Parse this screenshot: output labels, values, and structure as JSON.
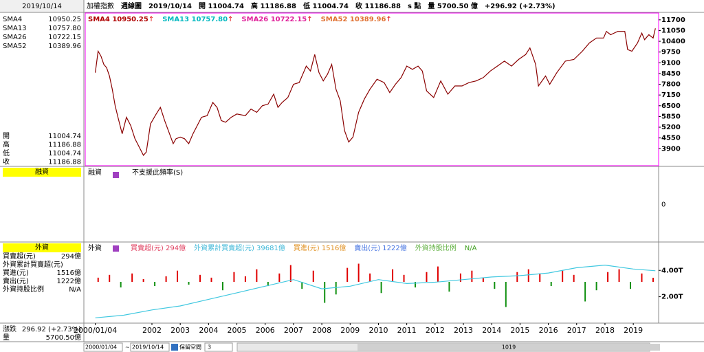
{
  "header": {
    "date": "2019/10/14",
    "items": [
      "加權指數",
      "週線圖",
      "2019/10/14",
      "開 11004.74",
      "高 11186.88",
      "低 11004.74",
      "收 11186.88",
      "s 點",
      "量 5700.50 億",
      "+296.92 (+2.73%)"
    ]
  },
  "left": {
    "sma": [
      {
        "name": "SMA4",
        "value": "10950.25",
        "color": "#b00000"
      },
      {
        "name": "SMA13",
        "value": "10757.80",
        "color": "#00b8c0"
      },
      {
        "name": "SMA26",
        "value": "10722.15",
        "color": "#e0209a"
      },
      {
        "name": "SMA52",
        "value": "10389.96",
        "color": "#e07030"
      }
    ],
    "ohlc": [
      {
        "label": "開",
        "value": "11004.74"
      },
      {
        "label": "高",
        "value": "11186.88"
      },
      {
        "label": "低",
        "value": "11004.74"
      },
      {
        "label": "收",
        "value": "11186.88"
      }
    ],
    "margin_title": "融資",
    "foreign_title": "外資",
    "foreign_items": [
      {
        "label": "買賣超(元)",
        "value": "294億",
        "color": "#e00000"
      },
      {
        "label": "外資累計買賣超(元)",
        "color": "#2060e0"
      },
      {
        "label": "買進(元)",
        "value": "1516億",
        "color": "#e08000"
      },
      {
        "label": "賣出(元)",
        "value": "1222億",
        "color": "#2060e0"
      },
      {
        "label": "外資持股比例",
        "value": "N/A",
        "color": "#20a020"
      }
    ],
    "change_label": "漲跌",
    "change": "296.92 (+2.73%)",
    "volume_label": "量",
    "volume": "5700.50億"
  },
  "margin_panel": {
    "title": "融資",
    "note": "不支援此頻率(S)",
    "ylim": [
      -1,
      1
    ],
    "yticks": [
      0
    ]
  },
  "chart_data": [
    {
      "type": "line",
      "legend": [
        {
          "text": "SMA4 10950.25",
          "arrow": "↑",
          "color": "#b00000"
        },
        {
          "text": "SMA13 10757.80",
          "arrow": "↑",
          "color": "#00b8c0"
        },
        {
          "text": "SMA26 10722.15",
          "arrow": "↑",
          "color": "#e0209a"
        },
        {
          "text": "SMA52 10389.96",
          "arrow": "↑",
          "color": "#e07030"
        }
      ],
      "xlim": [
        1999.645,
        2019.895
      ],
      "ylim": [
        2870,
        12110
      ],
      "yticks": [
        11700,
        11050,
        10400,
        9750,
        9100,
        8450,
        7800,
        7150,
        6500,
        5850,
        5200,
        4550,
        3900
      ],
      "series": [
        {
          "color": "#8a0000",
          "x": [
            2000.0,
            2000.1,
            2000.2,
            2000.3,
            2000.4,
            2000.5,
            2000.6,
            2000.7,
            2000.8,
            2000.95,
            2001.1,
            2001.25,
            2001.4,
            2001.55,
            2001.7,
            2001.8,
            2001.95,
            2002.15,
            2002.3,
            2002.45,
            2002.6,
            2002.75,
            2002.85,
            2003.0,
            2003.15,
            2003.3,
            2003.45,
            2003.6,
            2003.75,
            2003.95,
            2004.15,
            2004.3,
            2004.45,
            2004.6,
            2004.8,
            2005.0,
            2005.3,
            2005.5,
            2005.7,
            2005.9,
            2006.1,
            2006.3,
            2006.45,
            2006.6,
            2006.8,
            2007.0,
            2007.2,
            2007.45,
            2007.6,
            2007.75,
            2007.9,
            2008.05,
            2008.2,
            2008.35,
            2008.5,
            2008.65,
            2008.8,
            2008.95,
            2009.1,
            2009.3,
            2009.5,
            2009.7,
            2009.95,
            2010.2,
            2010.4,
            2010.6,
            2010.8,
            2011.0,
            2011.2,
            2011.4,
            2011.55,
            2011.7,
            2011.95,
            2012.2,
            2012.45,
            2012.7,
            2012.95,
            2013.2,
            2013.45,
            2013.7,
            2013.95,
            2014.2,
            2014.45,
            2014.7,
            2014.95,
            2015.2,
            2015.35,
            2015.55,
            2015.65,
            2015.9,
            2016.05,
            2016.3,
            2016.6,
            2016.9,
            2017.2,
            2017.45,
            2017.7,
            2017.95,
            2018.05,
            2018.2,
            2018.45,
            2018.7,
            2018.8,
            2018.95,
            2019.15,
            2019.3,
            2019.4,
            2019.55,
            2019.7,
            2019.78
          ],
          "values": [
            8500,
            9800,
            9500,
            9000,
            8800,
            8300,
            7500,
            6500,
            5800,
            4800,
            5800,
            5300,
            4500,
            4000,
            3500,
            3700,
            5400,
            6000,
            6400,
            5600,
            4900,
            4200,
            4500,
            4600,
            4500,
            4200,
            4800,
            5300,
            5800,
            5900,
            6700,
            6400,
            5600,
            5500,
            5800,
            6000,
            5900,
            6300,
            6100,
            6500,
            6600,
            7200,
            6400,
            6700,
            7000,
            7800,
            7900,
            8900,
            8600,
            9600,
            8500,
            8000,
            8400,
            9000,
            7500,
            6800,
            5000,
            4300,
            4600,
            6100,
            6900,
            7500,
            8100,
            7900,
            7300,
            7800,
            8200,
            8900,
            8700,
            8900,
            8600,
            7400,
            7000,
            8000,
            7200,
            7700,
            7700,
            7900,
            8000,
            8200,
            8600,
            8900,
            9200,
            8900,
            9300,
            9600,
            10000,
            9000,
            7700,
            8300,
            7800,
            8500,
            9200,
            9300,
            9800,
            10300,
            10600,
            10600,
            11000,
            10800,
            11000,
            11000,
            9900,
            9800,
            10300,
            10900,
            10500,
            10800,
            10600,
            11186.88
          ]
        }
      ]
    },
    {
      "type": "combo",
      "title": "外資",
      "legend": [
        {
          "text": "買賣超(元) 294億",
          "color": "#e04060"
        },
        {
          "text": "外資累計買賣超(元) 39681億",
          "color": "#40b8d8"
        },
        {
          "text": "買進(元) 1516億",
          "color": "#e09020"
        },
        {
          "text": "賣出(元) 1222億",
          "color": "#4070e0"
        },
        {
          "text": "外資持股比例",
          "color": "#60b040"
        },
        {
          "text": "N/A",
          "color": "#40a020"
        }
      ],
      "xlim": [
        1999.645,
        2019.895
      ],
      "xticks": [
        {
          "value": 2000.0,
          "label": "2000/01/04"
        },
        2002,
        2003,
        2004,
        2005,
        2006,
        2007,
        2008,
        2009,
        2010,
        2011,
        2012,
        2013,
        2014,
        2015,
        2016,
        2017,
        2018,
        2019
      ],
      "ylim": [
        0.05,
        6.1
      ],
      "yticks": [
        {
          "value": 4,
          "label": "4.00T"
        },
        {
          "value": 2,
          "label": "2.00T"
        }
      ],
      "y2lim": [
        -2900,
        2800
      ],
      "series": [
        {
          "type": "bar",
          "axis": "y2",
          "x": [
            2000.1,
            2000.5,
            2000.9,
            2001.3,
            2001.7,
            2002.1,
            2002.5,
            2002.9,
            2003.3,
            2003.7,
            2004.1,
            2004.5,
            2004.9,
            2005.3,
            2005.7,
            2006.1,
            2006.5,
            2006.9,
            2007.3,
            2007.7,
            2008.1,
            2008.5,
            2008.9,
            2009.3,
            2009.7,
            2010.1,
            2010.5,
            2010.9,
            2011.3,
            2011.7,
            2012.1,
            2012.5,
            2012.9,
            2013.3,
            2013.7,
            2014.1,
            2014.5,
            2014.9,
            2015.3,
            2015.7,
            2016.1,
            2016.5,
            2016.9,
            2017.3,
            2017.7,
            2018.1,
            2018.5,
            2018.9,
            2019.3,
            2019.7
          ],
          "values": [
            300,
            500,
            -400,
            600,
            200,
            -300,
            400,
            800,
            -200,
            500,
            300,
            -600,
            700,
            400,
            900,
            -300,
            600,
            1200,
            -500,
            800,
            -1500,
            -900,
            1000,
            1300,
            600,
            -800,
            900,
            500,
            -400,
            700,
            1100,
            -700,
            600,
            800,
            300,
            -500,
            -1800,
            700,
            900,
            600,
            -300,
            800,
            500,
            -1400,
            -600,
            700,
            900,
            -500,
            600,
            294
          ],
          "pos_color": "#e00000",
          "neg_color": "#109010"
        },
        {
          "type": "line",
          "color": "#40c8e0",
          "x": [
            2000.0,
            2001,
            2002,
            2003,
            2004,
            2005,
            2006,
            2007,
            2008,
            2009,
            2010,
            2011,
            2012,
            2013,
            2014,
            2015,
            2016,
            2017,
            2018,
            2019,
            2019.78
          ],
          "values": [
            0.4,
            0.6,
            1.0,
            1.3,
            1.8,
            2.3,
            2.8,
            3.3,
            2.6,
            2.8,
            3.3,
            3.0,
            3.1,
            3.3,
            3.5,
            3.6,
            3.8,
            4.2,
            4.4,
            4.1,
            3.97
          ]
        }
      ]
    }
  ],
  "toolbar": {
    "start": "2000/01/04",
    "sep": "~",
    "end": "2019/10/14",
    "space_label": "保留空間",
    "space": "3",
    "count": "1019"
  }
}
